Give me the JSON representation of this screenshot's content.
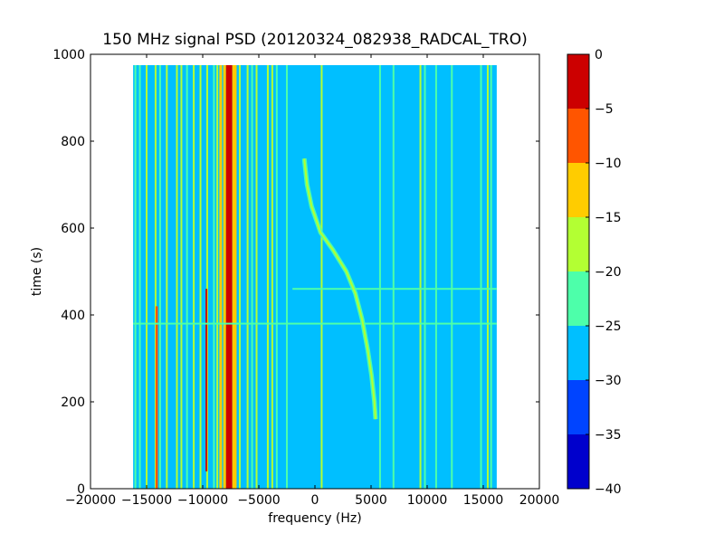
{
  "chart_data": {
    "type": "heatmap",
    "title": "150 MHz signal PSD (20120324_082938_RADCAL_TRO)",
    "xlabel": "frequency (Hz)",
    "ylabel": "time (s)",
    "xlim": [
      -20000,
      20000
    ],
    "ylim": [
      0,
      1000
    ],
    "x_ticks": [
      -20000,
      -15000,
      -10000,
      -5000,
      0,
      5000,
      10000,
      15000,
      20000
    ],
    "y_ticks": [
      0,
      200,
      400,
      600,
      800,
      1000
    ],
    "x_tick_labels": [
      "−20000",
      "−15000",
      "−10000",
      "−5000",
      "0",
      "5000",
      "10000",
      "15000",
      "20000"
    ],
    "y_tick_labels": [
      "0",
      "200",
      "400",
      "600",
      "800",
      "1000"
    ],
    "data_extent": {
      "x": [
        -16200,
        16200
      ],
      "y": [
        0,
        975
      ]
    },
    "background_level": -27.5,
    "colorbar": {
      "levels": [
        -40,
        -35,
        -30,
        -25,
        -20,
        -15,
        -10,
        -5,
        0
      ],
      "tick_labels": [
        "−40",
        "−35",
        "−30",
        "−25",
        "−20",
        "−15",
        "−10",
        "−5",
        "0"
      ],
      "colors": [
        "#0000cc",
        "#0044ff",
        "#00bfff",
        "#4dffaa",
        "#b3ff33",
        "#ffcc00",
        "#ff5500",
        "#cc0000"
      ]
    },
    "vertical_lines": [
      {
        "x": -16000,
        "level": -22.5
      },
      {
        "x": -15600,
        "level": -22.5
      },
      {
        "x": -15000,
        "level": -17.5
      },
      {
        "x": -14200,
        "level": -17.5
      },
      {
        "x": -13800,
        "level": -22.5
      },
      {
        "x": -13200,
        "level": -17.5
      },
      {
        "x": -12300,
        "level": -17.5
      },
      {
        "x": -11900,
        "level": -17.5
      },
      {
        "x": -11400,
        "level": -22.5
      },
      {
        "x": -10800,
        "level": -17.5
      },
      {
        "x": -10200,
        "level": -17.5
      },
      {
        "x": -9600,
        "level": -17.5
      },
      {
        "x": -9000,
        "level": -22.5
      },
      {
        "x": -8700,
        "level": -17.5
      },
      {
        "x": -8400,
        "level": -12.5
      },
      {
        "x": -7650,
        "level": -2.5
      },
      {
        "x": -7100,
        "level": -12.5
      },
      {
        "x": -6700,
        "level": -17.5
      },
      {
        "x": -6000,
        "level": -17.5
      },
      {
        "x": -5600,
        "level": -22.5
      },
      {
        "x": -5200,
        "level": -17.5
      },
      {
        "x": -4200,
        "level": -17.5
      },
      {
        "x": -3800,
        "level": -17.5
      },
      {
        "x": -3400,
        "level": -22.5
      },
      {
        "x": -2500,
        "level": -22.5
      },
      {
        "x": 600,
        "level": -17.5
      },
      {
        "x": 5800,
        "level": -22.5
      },
      {
        "x": 7000,
        "level": -22.5
      },
      {
        "x": 9400,
        "level": -17.5
      },
      {
        "x": 9800,
        "level": -22.5
      },
      {
        "x": 10800,
        "level": -22.5
      },
      {
        "x": 12200,
        "level": -22.5
      },
      {
        "x": 14800,
        "level": -22.5
      },
      {
        "x": 15400,
        "level": -17.5
      },
      {
        "x": 15700,
        "level": -22.5
      }
    ],
    "strong_lines": [
      {
        "x_start": -14200,
        "x_end": -14000,
        "y_start": 0,
        "y_end": 420,
        "level": -7.5
      },
      {
        "x_start": -9750,
        "x_end": -9700,
        "y_start": 40,
        "y_end": 460,
        "level": -2.5
      }
    ],
    "drifting_trace": {
      "level": -17.5,
      "points": [
        {
          "x": 5400,
          "y": 160
        },
        {
          "x": 5300,
          "y": 200
        },
        {
          "x": 5050,
          "y": 260
        },
        {
          "x": 4700,
          "y": 320
        },
        {
          "x": 4200,
          "y": 390
        },
        {
          "x": 3600,
          "y": 450
        },
        {
          "x": 2800,
          "y": 500
        },
        {
          "x": 1600,
          "y": 550
        },
        {
          "x": 500,
          "y": 590
        },
        {
          "x": -300,
          "y": 650
        },
        {
          "x": -700,
          "y": 700
        },
        {
          "x": -950,
          "y": 760
        }
      ]
    },
    "horizontal_lines": [
      {
        "y": 380,
        "x_start": -16200,
        "x_end": 16200,
        "level": -22.5
      },
      {
        "y": 460,
        "x_start": -2000,
        "x_end": 16200,
        "level": -22.5
      }
    ]
  }
}
